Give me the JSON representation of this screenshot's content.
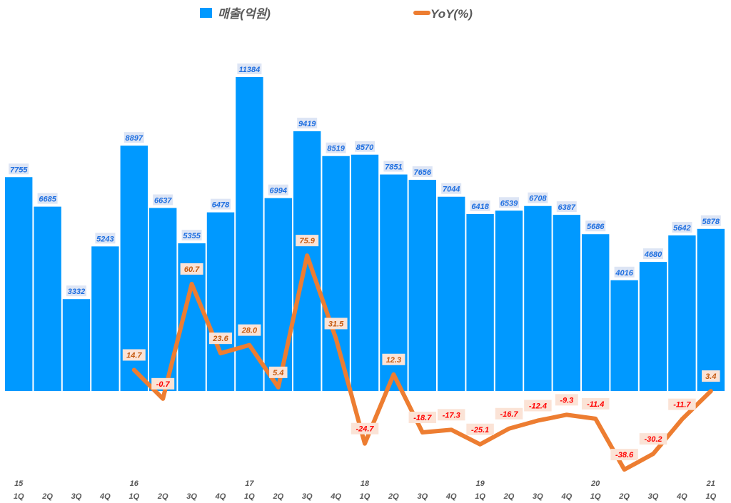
{
  "chart_data": {
    "type": "bar+line",
    "categories": [
      "15 1Q",
      "2Q",
      "3Q",
      "4Q",
      "16 1Q",
      "2Q",
      "3Q",
      "4Q",
      "17 1Q",
      "2Q",
      "3Q",
      "4Q",
      "18 1Q",
      "2Q",
      "3Q",
      "4Q",
      "19 1Q",
      "2Q",
      "3Q",
      "4Q",
      "20 1Q",
      "2Q",
      "3Q",
      "4Q",
      "21 1Q"
    ],
    "quarter_labels": [
      "1Q",
      "2Q",
      "3Q",
      "4Q",
      "1Q",
      "2Q",
      "3Q",
      "4Q",
      "1Q",
      "2Q",
      "3Q",
      "4Q",
      "1Q",
      "2Q",
      "3Q",
      "4Q",
      "1Q",
      "2Q",
      "3Q",
      "4Q",
      "1Q",
      "2Q",
      "3Q",
      "4Q",
      "1Q"
    ],
    "year_labels": [
      "15",
      "",
      "",
      "",
      "16",
      "",
      "",
      "",
      "17",
      "",
      "",
      "",
      "18",
      "",
      "",
      "",
      "19",
      "",
      "",
      "",
      "20",
      "",
      "",
      "",
      "21"
    ],
    "series": [
      {
        "name": "매출(억원)",
        "type": "bar",
        "color": "#0099ff",
        "values": [
          7755,
          6685,
          3332,
          5243,
          8897,
          6637,
          5355,
          6478,
          11384,
          6994,
          9419,
          8519,
          8570,
          7851,
          7656,
          7044,
          6418,
          6539,
          6708,
          6387,
          5686,
          4016,
          4680,
          5642,
          5878
        ]
      },
      {
        "name": "YoY(%)",
        "type": "line",
        "color": "#ed7d31",
        "values": [
          null,
          null,
          null,
          null,
          14.7,
          -0.7,
          60.7,
          23.6,
          28.0,
          5.4,
          75.9,
          31.5,
          -24.7,
          12.3,
          -18.7,
          -17.3,
          -25.1,
          -16.7,
          -12.4,
          -9.3,
          -11.4,
          -38.6,
          -30.2,
          -11.7,
          3.4
        ]
      }
    ],
    "legend": "top",
    "grid": false,
    "colors": {
      "bar_label": "#1f6fe0",
      "positive_label": "#c55a11",
      "negative_label": "#ff0000",
      "label_bg": "#fbe3d6",
      "bar_label_bg": "#dde5f5"
    }
  }
}
